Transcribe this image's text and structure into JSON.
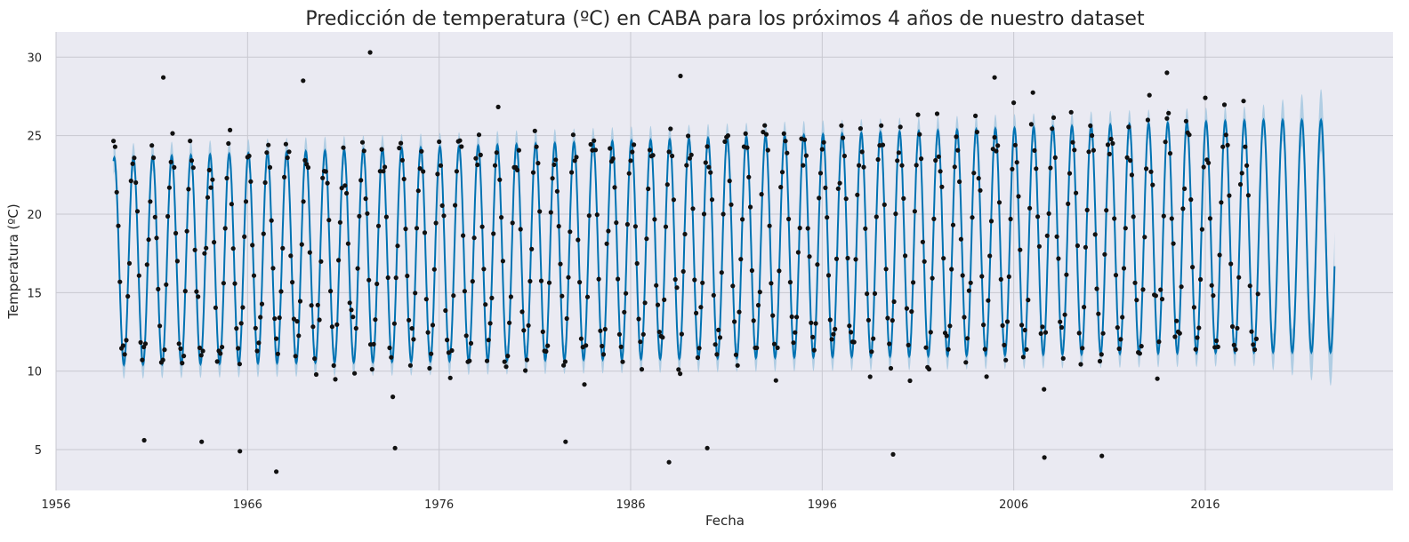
{
  "chart_data": {
    "type": "line",
    "title": "Predicción de temperatura (ºC) en CABA para los próximos 4 años de nuestro dataset",
    "xlabel": "Fecha",
    "ylabel": "Temperatura (ºC)",
    "xlim": [
      1956.0,
      2025.8
    ],
    "ylim": [
      2.4,
      31.6
    ],
    "x_ticks": [
      "1956",
      "1966",
      "1976",
      "1986",
      "1996",
      "2006",
      "2016"
    ],
    "y_ticks": [
      "5",
      "10",
      "15",
      "20",
      "25",
      "30"
    ],
    "grid": true,
    "series": [
      {
        "role": "observed",
        "style": "scatter",
        "color": "#111111",
        "x_start": 1959.0,
        "x_end": 2018.75,
        "note_points": "monthly mean temperatures"
      },
      {
        "role": "forecast",
        "style": "line",
        "color": "#0072b2",
        "x_start": 1959.0,
        "x_end": 2022.75
      },
      {
        "role": "uncertainty",
        "style": "band",
        "color": "#a6c8e1",
        "x_start": 1959.0,
        "x_end": 2022.75
      }
    ],
    "seasonal_model": {
      "mean_start": 17.0,
      "mean_end": 18.6,
      "amplitude_start": 6.6,
      "amplitude_end": 7.4,
      "peak_month": 1,
      "period_years": 1.0,
      "band_halfwidth_hist": 0.9,
      "band_halfwidth_forecast_end": 2.2,
      "observed_noise_sd": 1.6
    },
    "outliers": [
      {
        "x": 1961.6,
        "y": 28.7
      },
      {
        "x": 1968.9,
        "y": 28.5
      },
      {
        "x": 1972.4,
        "y": 30.3
      },
      {
        "x": 1967.5,
        "y": 3.6
      },
      {
        "x": 1988.0,
        "y": 4.2
      },
      {
        "x": 2007.6,
        "y": 4.5
      },
      {
        "x": 2010.6,
        "y": 4.6
      },
      {
        "x": 1999.7,
        "y": 4.7
      },
      {
        "x": 1965.6,
        "y": 4.9
      },
      {
        "x": 1988.6,
        "y": 28.8
      },
      {
        "x": 2005.0,
        "y": 28.7
      },
      {
        "x": 2014.0,
        "y": 29.0
      },
      {
        "x": 1973.7,
        "y": 5.1
      },
      {
        "x": 1990.0,
        "y": 5.1
      },
      {
        "x": 1960.6,
        "y": 5.6
      },
      {
        "x": 1963.6,
        "y": 5.5
      },
      {
        "x": 1982.6,
        "y": 5.5
      }
    ]
  }
}
